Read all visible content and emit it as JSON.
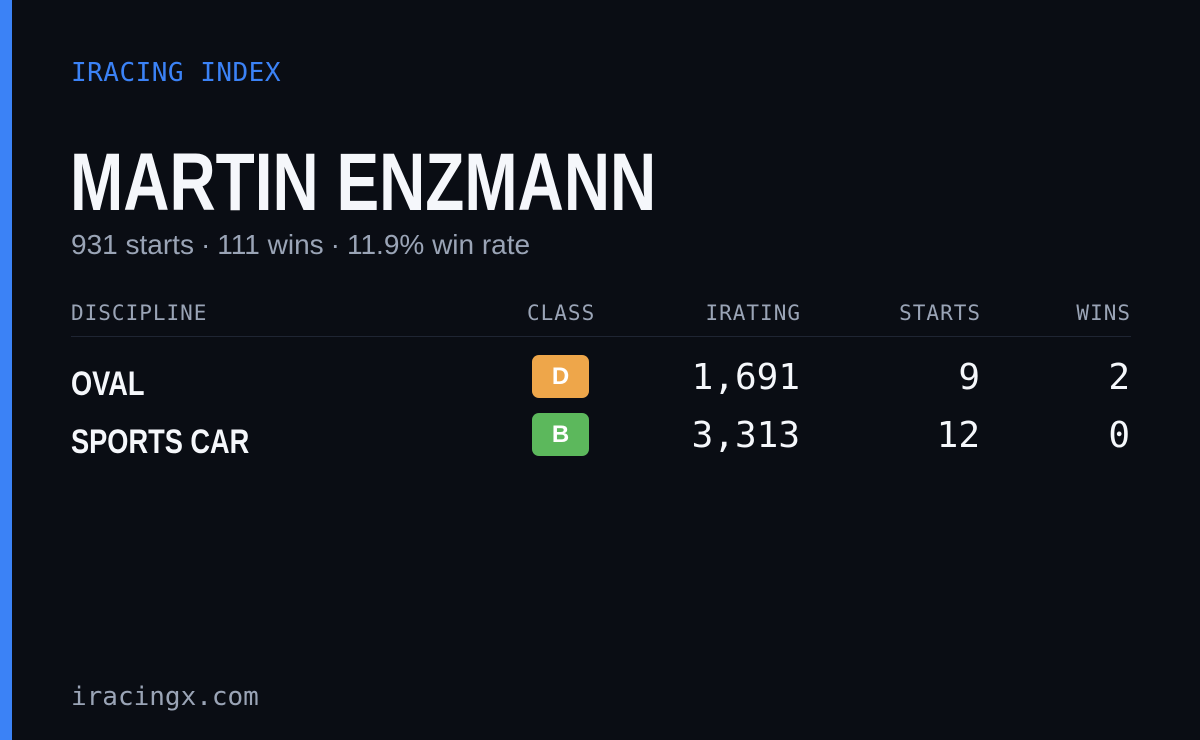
{
  "brand": "IRACING INDEX",
  "driver": {
    "name": "MARTIN ENZMANN",
    "starts_text": "931 starts",
    "wins_text": "111 wins",
    "win_rate_text": "11.9% win rate",
    "separator": "·"
  },
  "table": {
    "headers": {
      "discipline": "DISCIPLINE",
      "class": "CLASS",
      "irating": "IRATING",
      "starts": "STARTS",
      "wins": "WINS"
    },
    "rows": [
      {
        "discipline": "OVAL",
        "class": "D",
        "class_color": "#eea64a",
        "irating": "1,691",
        "starts": "9",
        "wins": "2"
      },
      {
        "discipline": "SPORTS CAR",
        "class": "B",
        "class_color": "#5cb85c",
        "irating": "3,313",
        "starts": "12",
        "wins": "0"
      }
    ]
  },
  "footer": "iracingx.com",
  "colors": {
    "background": "#0a0d14",
    "accent": "#3b82f6",
    "muted": "#9aa4b6",
    "text": "#f5f7fb"
  }
}
